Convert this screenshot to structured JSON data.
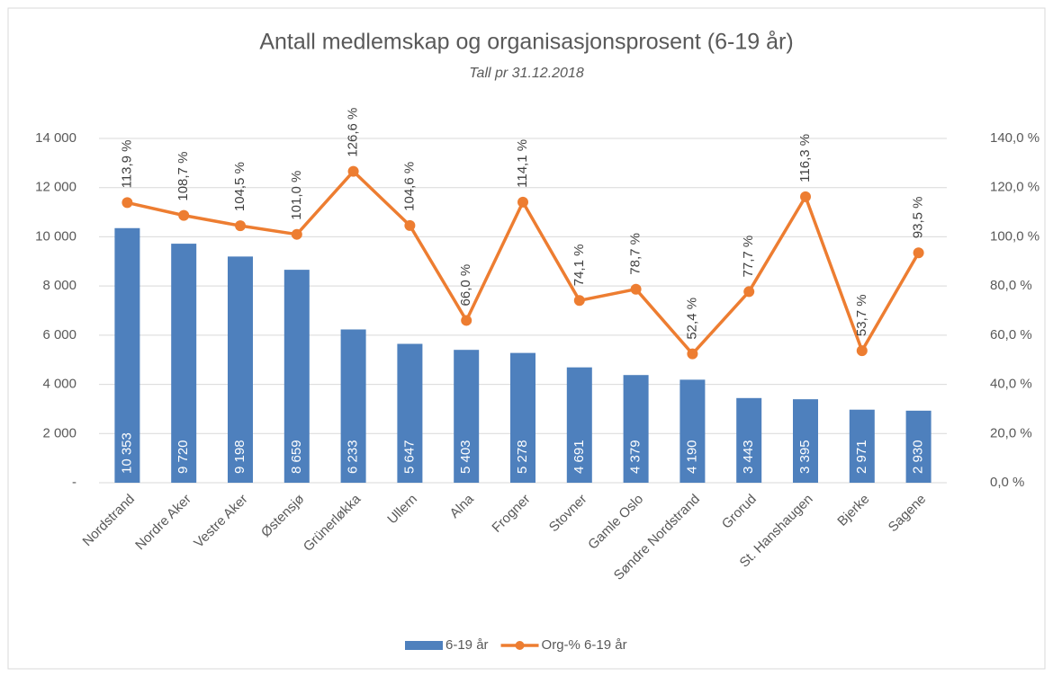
{
  "chart_data": {
    "type": "combo",
    "title": "Antall medlemskap og organisasjonsprosent  (6-19 år)",
    "subtitle": "Tall pr 31.12.2018",
    "categories": [
      "Nordstrand",
      "Nordre Aker",
      "Vestre Aker",
      "Østensjø",
      "Grünerløkka",
      "Ullern",
      "Alna",
      "Frogner",
      "Stovner",
      "Gamle Oslo",
      "Søndre Nordstrand",
      "Grorud",
      "St. Hanshaugen",
      "Bjerke",
      "Sagene"
    ],
    "series": [
      {
        "name": "6-19 år",
        "type": "bar",
        "color": "#4e80bd",
        "values": [
          10353,
          9720,
          9198,
          8659,
          6233,
          5647,
          5403,
          5278,
          4691,
          4379,
          4190,
          3443,
          3395,
          2971,
          2930
        ],
        "value_labels": [
          "10 353",
          "9 720",
          "9 198",
          "8 659",
          "6 233",
          "5 647",
          "5 403",
          "5 278",
          "4 691",
          "4 379",
          "4 190",
          "3 443",
          "3 395",
          "2 971",
          "2 930"
        ]
      },
      {
        "name": "Org-% 6-19 år",
        "type": "line",
        "axis": "y2",
        "color": "#ed7d31",
        "values": [
          113.9,
          108.7,
          104.5,
          101.0,
          126.6,
          104.6,
          66.0,
          114.1,
          74.1,
          78.7,
          52.4,
          77.7,
          116.3,
          53.7,
          93.5
        ],
        "value_labels": [
          "113,9 %",
          "108,7 %",
          "104,5 %",
          "101,0 %",
          "126,6 %",
          "104,6 %",
          "66,0 %",
          "114,1 %",
          "74,1 %",
          "78,7 %",
          "52,4 %",
          "77,7 %",
          "116,3 %",
          "53,7 %",
          "93,5 %"
        ]
      }
    ],
    "ylim": [
      0,
      14000
    ],
    "yticks": [
      {
        "value": 0,
        "label": "-"
      },
      {
        "value": 2000,
        "label": "2 000"
      },
      {
        "value": 4000,
        "label": "4 000"
      },
      {
        "value": 6000,
        "label": "6 000"
      },
      {
        "value": 8000,
        "label": "8 000"
      },
      {
        "value": 10000,
        "label": "10 000"
      },
      {
        "value": 12000,
        "label": "12 000"
      },
      {
        "value": 14000,
        "label": "14 000"
      }
    ],
    "y2lim": [
      0,
      140
    ],
    "y2ticks": [
      {
        "value": 0,
        "label": "0,0 %"
      },
      {
        "value": 20,
        "label": "20,0 %"
      },
      {
        "value": 40,
        "label": "40,0 %"
      },
      {
        "value": 60,
        "label": "60,0 %"
      },
      {
        "value": 80,
        "label": "80,0 %"
      },
      {
        "value": 100,
        "label": "100,0 %"
      },
      {
        "value": 120,
        "label": "120,0 %"
      },
      {
        "value": 140,
        "label": "140,0 %"
      }
    ],
    "grid": true,
    "legend": "bottom"
  }
}
